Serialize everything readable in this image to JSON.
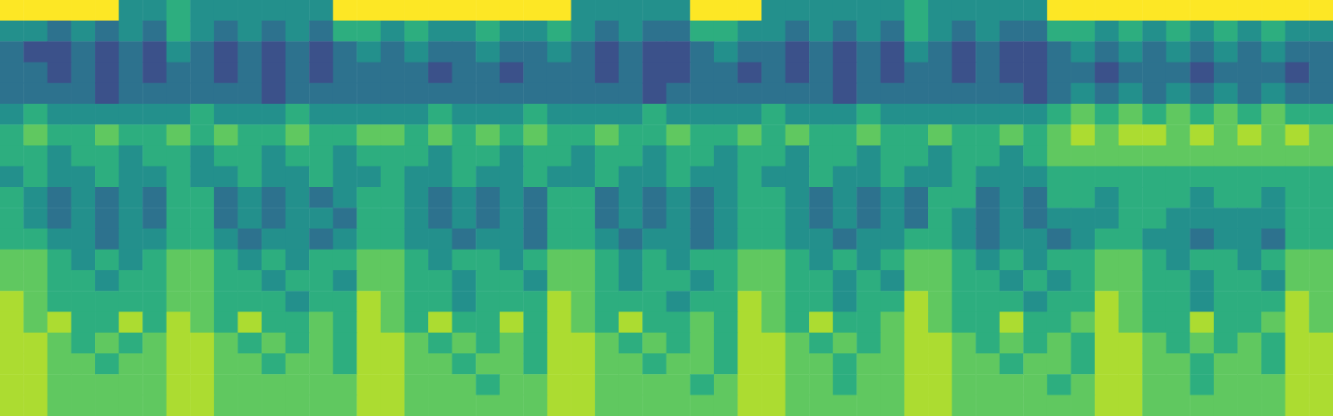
{
  "chart_data": {
    "type": "heatmap",
    "tick_labels": false,
    "grid": false,
    "zlim": [
      1,
      9
    ],
    "cells": [
      [
        9,
        9,
        9,
        9,
        9,
        5,
        5,
        6,
        5,
        5,
        5,
        5,
        5,
        5,
        9,
        9,
        9,
        9,
        9,
        9,
        9,
        9,
        9,
        9,
        5,
        5,
        5,
        5,
        5,
        9,
        9,
        9,
        5,
        5,
        5,
        5,
        5,
        5,
        6,
        5,
        5,
        5,
        5,
        5,
        9,
        9,
        9,
        9,
        9,
        9,
        9,
        9,
        9,
        9,
        9,
        9
      ],
      [
        5,
        5,
        4,
        5,
        4,
        5,
        4,
        6,
        5,
        4,
        5,
        4,
        5,
        4,
        6,
        6,
        5,
        6,
        5,
        5,
        6,
        5,
        5,
        6,
        5,
        4,
        5,
        4,
        4,
        6,
        6,
        5,
        5,
        4,
        5,
        4,
        5,
        4,
        6,
        5,
        4,
        5,
        4,
        4,
        6,
        6,
        5,
        6,
        5,
        6,
        5,
        6,
        5,
        6,
        5,
        5
      ],
      [
        4,
        3,
        3,
        4,
        3,
        4,
        3,
        5,
        4,
        3,
        4,
        3,
        4,
        3,
        4,
        5,
        4,
        5,
        4,
        4,
        5,
        4,
        4,
        5,
        4,
        3,
        4,
        3,
        3,
        4,
        5,
        4,
        4,
        3,
        4,
        3,
        4,
        3,
        5,
        4,
        3,
        4,
        3,
        3,
        4,
        5,
        4,
        5,
        4,
        5,
        4,
        5,
        4,
        5,
        4,
        4
      ],
      [
        4,
        4,
        3,
        4,
        3,
        4,
        3,
        4,
        4,
        3,
        4,
        3,
        4,
        3,
        4,
        4,
        4,
        4,
        3,
        4,
        4,
        3,
        4,
        4,
        4,
        3,
        4,
        3,
        3,
        4,
        4,
        3,
        4,
        3,
        4,
        3,
        4,
        3,
        4,
        4,
        3,
        4,
        3,
        3,
        4,
        4,
        3,
        4,
        4,
        4,
        3,
        4,
        4,
        4,
        3,
        4
      ],
      [
        4,
        4,
        4,
        4,
        3,
        4,
        4,
        4,
        4,
        4,
        4,
        3,
        4,
        4,
        4,
        4,
        4,
        4,
        4,
        4,
        4,
        4,
        4,
        4,
        4,
        4,
        4,
        3,
        4,
        4,
        4,
        4,
        4,
        4,
        4,
        3,
        4,
        4,
        4,
        4,
        4,
        4,
        4,
        3,
        4,
        5,
        4,
        5,
        4,
        5,
        4,
        5,
        4,
        5,
        4,
        4
      ],
      [
        5,
        6,
        5,
        5,
        5,
        5,
        5,
        5,
        6,
        5,
        5,
        5,
        6,
        5,
        5,
        5,
        5,
        5,
        6,
        5,
        5,
        5,
        6,
        5,
        5,
        5,
        5,
        6,
        5,
        5,
        5,
        5,
        6,
        5,
        5,
        5,
        6,
        5,
        5,
        5,
        5,
        5,
        5,
        5,
        6,
        7,
        6,
        7,
        6,
        7,
        6,
        7,
        6,
        7,
        6,
        6
      ],
      [
        6,
        7,
        6,
        6,
        7,
        6,
        6,
        7,
        6,
        7,
        6,
        6,
        7,
        6,
        6,
        7,
        7,
        6,
        7,
        6,
        7,
        6,
        7,
        6,
        6,
        7,
        6,
        6,
        7,
        6,
        6,
        7,
        6,
        7,
        6,
        6,
        7,
        6,
        6,
        7,
        6,
        6,
        7,
        6,
        7,
        8,
        7,
        8,
        8,
        7,
        8,
        7,
        8,
        7,
        8,
        7
      ],
      [
        6,
        6,
        5,
        6,
        6,
        5,
        6,
        6,
        5,
        6,
        6,
        5,
        6,
        6,
        5,
        6,
        6,
        6,
        5,
        6,
        6,
        5,
        6,
        6,
        5,
        6,
        6,
        5,
        6,
        6,
        5,
        6,
        6,
        5,
        6,
        6,
        5,
        6,
        6,
        5,
        6,
        6,
        5,
        6,
        7,
        7,
        7,
        7,
        7,
        7,
        7,
        7,
        7,
        7,
        7,
        7
      ],
      [
        5,
        6,
        5,
        5,
        6,
        5,
        5,
        6,
        5,
        5,
        6,
        5,
        5,
        6,
        5,
        5,
        6,
        5,
        5,
        6,
        5,
        5,
        6,
        5,
        5,
        6,
        5,
        5,
        6,
        5,
        5,
        6,
        5,
        5,
        6,
        5,
        5,
        6,
        5,
        5,
        6,
        5,
        5,
        5,
        6,
        6,
        6,
        6,
        6,
        6,
        6,
        6,
        6,
        6,
        6,
        6
      ],
      [
        6,
        5,
        4,
        5,
        4,
        5,
        4,
        6,
        6,
        4,
        5,
        4,
        5,
        4,
        5,
        6,
        6,
        5,
        4,
        5,
        4,
        5,
        4,
        6,
        6,
        4,
        5,
        4,
        5,
        4,
        5,
        6,
        6,
        5,
        4,
        5,
        4,
        5,
        4,
        6,
        6,
        4,
        5,
        4,
        6,
        6,
        5,
        6,
        6,
        6,
        5,
        6,
        6,
        5,
        6,
        6
      ],
      [
        6,
        5,
        4,
        5,
        4,
        5,
        4,
        6,
        6,
        4,
        5,
        4,
        5,
        5,
        4,
        6,
        6,
        5,
        4,
        5,
        4,
        5,
        4,
        6,
        6,
        4,
        5,
        4,
        5,
        4,
        5,
        6,
        6,
        5,
        4,
        5,
        4,
        5,
        4,
        6,
        5,
        4,
        5,
        4,
        5,
        5,
        5,
        6,
        6,
        5,
        5,
        5,
        5,
        5,
        6,
        6
      ],
      [
        6,
        6,
        5,
        5,
        4,
        5,
        5,
        6,
        6,
        5,
        4,
        5,
        5,
        4,
        5,
        6,
        6,
        5,
        5,
        4,
        5,
        5,
        4,
        6,
        6,
        5,
        4,
        5,
        5,
        4,
        5,
        6,
        6,
        5,
        5,
        4,
        5,
        5,
        6,
        6,
        5,
        4,
        5,
        5,
        4,
        5,
        6,
        6,
        5,
        5,
        4,
        5,
        5,
        4,
        6,
        6
      ],
      [
        7,
        7,
        6,
        5,
        6,
        5,
        6,
        7,
        7,
        6,
        5,
        6,
        5,
        6,
        6,
        7,
        7,
        6,
        5,
        6,
        6,
        5,
        6,
        7,
        7,
        6,
        5,
        6,
        5,
        6,
        6,
        7,
        7,
        6,
        5,
        6,
        5,
        6,
        7,
        7,
        6,
        5,
        6,
        5,
        6,
        6,
        7,
        7,
        6,
        5,
        6,
        6,
        5,
        6,
        7,
        7
      ],
      [
        7,
        7,
        6,
        6,
        5,
        6,
        6,
        7,
        7,
        6,
        6,
        5,
        6,
        6,
        5,
        7,
        7,
        6,
        6,
        5,
        6,
        6,
        5,
        7,
        7,
        6,
        5,
        6,
        6,
        5,
        6,
        7,
        7,
        6,
        6,
        5,
        6,
        5,
        7,
        7,
        6,
        6,
        5,
        6,
        5,
        6,
        7,
        7,
        6,
        6,
        5,
        6,
        6,
        5,
        7,
        7
      ],
      [
        8,
        7,
        6,
        6,
        6,
        6,
        6,
        7,
        7,
        6,
        6,
        6,
        5,
        6,
        6,
        8,
        7,
        6,
        6,
        5,
        6,
        6,
        6,
        8,
        7,
        6,
        6,
        6,
        5,
        6,
        6,
        8,
        7,
        6,
        6,
        5,
        6,
        6,
        8,
        7,
        6,
        6,
        6,
        5,
        6,
        6,
        8,
        7,
        6,
        6,
        5,
        6,
        6,
        6,
        8,
        7
      ],
      [
        8,
        7,
        8,
        6,
        6,
        8,
        6,
        8,
        7,
        6,
        8,
        6,
        6,
        7,
        6,
        8,
        7,
        6,
        8,
        6,
        6,
        8,
        6,
        8,
        7,
        6,
        8,
        6,
        6,
        7,
        6,
        8,
        7,
        6,
        8,
        6,
        6,
        7,
        8,
        7,
        6,
        6,
        8,
        6,
        6,
        7,
        8,
        7,
        6,
        6,
        8,
        6,
        6,
        7,
        8,
        7
      ],
      [
        8,
        8,
        7,
        6,
        7,
        6,
        7,
        8,
        8,
        7,
        6,
        7,
        6,
        7,
        6,
        8,
        8,
        7,
        6,
        7,
        6,
        7,
        6,
        8,
        8,
        7,
        6,
        7,
        6,
        7,
        6,
        8,
        8,
        7,
        6,
        7,
        6,
        7,
        8,
        8,
        7,
        6,
        7,
        6,
        7,
        6,
        8,
        8,
        7,
        6,
        7,
        6,
        7,
        6,
        8,
        8
      ],
      [
        8,
        8,
        7,
        7,
        6,
        7,
        7,
        8,
        8,
        7,
        7,
        6,
        7,
        7,
        6,
        8,
        8,
        7,
        7,
        6,
        7,
        7,
        6,
        8,
        8,
        7,
        7,
        6,
        7,
        7,
        6,
        8,
        8,
        7,
        7,
        6,
        7,
        7,
        8,
        8,
        7,
        7,
        6,
        7,
        7,
        6,
        8,
        8,
        7,
        7,
        6,
        7,
        7,
        6,
        8,
        8
      ],
      [
        8,
        8,
        7,
        7,
        7,
        7,
        7,
        8,
        8,
        7,
        7,
        7,
        7,
        7,
        7,
        8,
        8,
        7,
        7,
        7,
        6,
        7,
        7,
        8,
        8,
        7,
        7,
        7,
        7,
        6,
        7,
        8,
        8,
        7,
        7,
        6,
        7,
        7,
        8,
        8,
        7,
        7,
        7,
        7,
        6,
        7,
        8,
        8,
        7,
        7,
        6,
        7,
        7,
        7,
        8,
        8
      ],
      [
        8,
        8,
        7,
        7,
        7,
        7,
        7,
        8,
        8,
        7,
        7,
        7,
        7,
        7,
        7,
        8,
        8,
        7,
        7,
        7,
        7,
        7,
        7,
        8,
        8,
        7,
        7,
        7,
        7,
        7,
        7,
        8,
        8,
        7,
        7,
        7,
        7,
        7,
        8,
        8,
        7,
        7,
        7,
        7,
        7,
        7,
        8,
        8,
        7,
        7,
        7,
        7,
        7,
        7,
        8,
        8
      ]
    ]
  }
}
